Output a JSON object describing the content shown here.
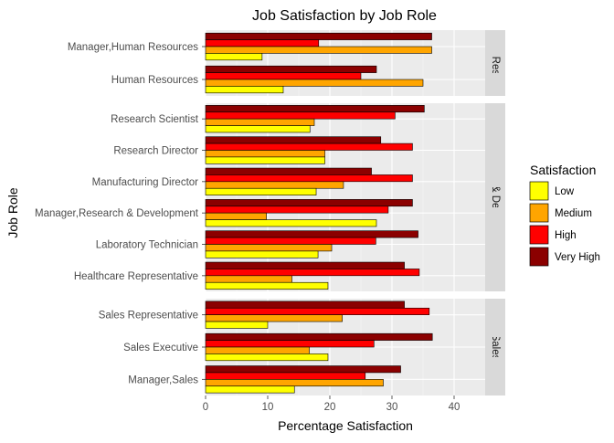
{
  "chart_data": {
    "type": "bar",
    "orientation": "horizontal",
    "title": "Job Satisfaction by Job Role",
    "xlabel": "Percentage Satisfaction",
    "ylabel": "Job Role",
    "xlim": [
      0,
      45
    ],
    "xticks": [
      "0",
      "10",
      "20",
      "30",
      "40"
    ],
    "grid": true,
    "legend": {
      "title": "Satisfaction",
      "position": "right",
      "items": [
        "Low",
        "Medium",
        "High",
        "Very High"
      ]
    },
    "series_colors": {
      "Low": "#FFFF00",
      "Medium": "#FFA500",
      "High": "#FF0000",
      "Very High": "#8B0000"
    },
    "panel_background": "#EBEBEB",
    "strip_background": "#D9D9D9",
    "facets": [
      {
        "strip": "Human Resources",
        "roles": [
          {
            "role": "Manager,Human Resources",
            "Low": 9.1,
            "Medium": 36.4,
            "High": 18.2,
            "Very High": 36.4
          },
          {
            "role": "Human Resources",
            "Low": 12.5,
            "Medium": 35.0,
            "High": 25.0,
            "Very High": 27.5
          }
        ]
      },
      {
        "strip": "Research & Development",
        "roles": [
          {
            "role": "Research Scientist",
            "Low": 16.8,
            "Medium": 17.5,
            "High": 30.5,
            "Very High": 35.2
          },
          {
            "role": "Research Director",
            "Low": 19.2,
            "Medium": 19.2,
            "High": 33.3,
            "Very High": 28.2
          },
          {
            "role": "Manufacturing Director",
            "Low": 17.8,
            "Medium": 22.2,
            "High": 33.3,
            "Very High": 26.7
          },
          {
            "role": "Manager,Research & Development",
            "Low": 27.5,
            "Medium": 9.8,
            "High": 29.4,
            "Very High": 33.3
          },
          {
            "role": "Laboratory Technician",
            "Low": 18.1,
            "Medium": 20.3,
            "High": 27.4,
            "Very High": 34.2
          },
          {
            "role": "Healthcare Representative",
            "Low": 19.7,
            "Medium": 13.9,
            "High": 34.4,
            "Very High": 32.0
          }
        ]
      },
      {
        "strip": "Sales",
        "roles": [
          {
            "role": "Sales Representative",
            "Low": 10.0,
            "Medium": 22.0,
            "High": 36.0,
            "Very High": 32.0
          },
          {
            "role": "Sales Executive",
            "Low": 19.7,
            "Medium": 16.7,
            "High": 27.1,
            "Very High": 36.5
          },
          {
            "role": "Manager,Sales",
            "Low": 14.3,
            "Medium": 28.6,
            "High": 25.7,
            "Very High": 31.4
          }
        ]
      }
    ]
  }
}
